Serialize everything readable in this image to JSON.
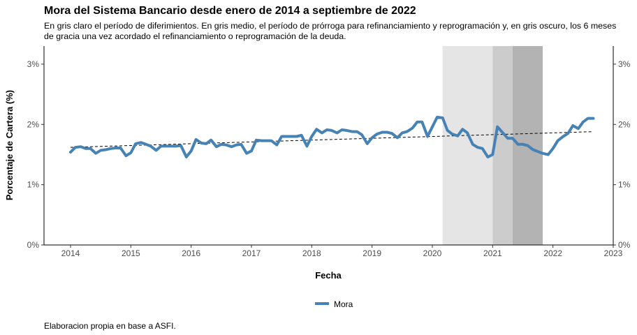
{
  "chart_data": {
    "type": "line",
    "title": "Mora del Sistema Bancario desde enero de 2014 a septiembre de 2022",
    "subtitle": "En gris claro el período de diferimientos. En gris medio, el período de prórroga para refinanciamiento y reprogramación y, en gris oscuro, los 6 meses de gracia una vez acordado el refinanciamiento o reprogramación de la deuda.",
    "caption": "Elaboracion propia en base a ASFI.",
    "xlabel": "Fecha",
    "ylabel": "Porcentaje de Cartera (%)",
    "xlim": [
      2013.56,
      2023.0
    ],
    "ylim": [
      0,
      3.3
    ],
    "x_ticks": [
      "2014",
      "2015",
      "2016",
      "2017",
      "2018",
      "2019",
      "2020",
      "2021",
      "2022",
      "2023"
    ],
    "y_ticks": [
      "0%",
      "1%",
      "2%",
      "3%"
    ],
    "y_tick_values": [
      0,
      1,
      2,
      3
    ],
    "shaded_periods": [
      {
        "start": 2020.17,
        "end": 2021.0,
        "color": "#e5e5e5"
      },
      {
        "start": 2021.0,
        "end": 2021.33,
        "color": "#cccccc"
      },
      {
        "start": 2021.33,
        "end": 2021.83,
        "color": "#b3b3b3"
      }
    ],
    "trend": {
      "x": [
        2014.0,
        2022.67
      ],
      "y": [
        1.62,
        1.88
      ],
      "color": "#000000",
      "style": "dashed"
    },
    "legend": {
      "position": "bottom",
      "entries": [
        "Mora"
      ]
    },
    "series": [
      {
        "name": "Mora",
        "color": "#4682b4",
        "x": [
          2014.0,
          2014.08,
          2014.17,
          2014.25,
          2014.33,
          2014.42,
          2014.5,
          2014.58,
          2014.67,
          2014.75,
          2014.83,
          2014.92,
          2015.0,
          2015.08,
          2015.17,
          2015.25,
          2015.33,
          2015.42,
          2015.5,
          2015.58,
          2015.67,
          2015.75,
          2015.83,
          2015.92,
          2016.0,
          2016.08,
          2016.17,
          2016.25,
          2016.33,
          2016.42,
          2016.5,
          2016.58,
          2016.67,
          2016.75,
          2016.83,
          2016.92,
          2017.0,
          2017.08,
          2017.17,
          2017.25,
          2017.33,
          2017.42,
          2017.5,
          2017.58,
          2017.67,
          2017.75,
          2017.83,
          2017.92,
          2018.0,
          2018.08,
          2018.17,
          2018.25,
          2018.33,
          2018.42,
          2018.5,
          2018.58,
          2018.67,
          2018.75,
          2018.83,
          2018.92,
          2019.0,
          2019.08,
          2019.17,
          2019.25,
          2019.33,
          2019.42,
          2019.5,
          2019.58,
          2019.67,
          2019.75,
          2019.83,
          2019.92,
          2020.0,
          2020.08,
          2020.17,
          2020.25,
          2020.33,
          2020.42,
          2020.5,
          2020.58,
          2020.67,
          2020.75,
          2020.83,
          2020.92,
          2021.0,
          2021.08,
          2021.17,
          2021.25,
          2021.33,
          2021.42,
          2021.5,
          2021.58,
          2021.67,
          2021.75,
          2021.83,
          2021.92,
          2022.0,
          2022.08,
          2022.17,
          2022.25,
          2022.33,
          2022.42,
          2022.5,
          2022.58,
          2022.67
        ],
        "values": [
          1.54,
          1.62,
          1.63,
          1.6,
          1.6,
          1.52,
          1.57,
          1.58,
          1.6,
          1.61,
          1.61,
          1.48,
          1.53,
          1.68,
          1.7,
          1.67,
          1.64,
          1.57,
          1.64,
          1.64,
          1.64,
          1.64,
          1.65,
          1.46,
          1.56,
          1.75,
          1.69,
          1.68,
          1.74,
          1.63,
          1.67,
          1.66,
          1.63,
          1.66,
          1.67,
          1.52,
          1.56,
          1.74,
          1.73,
          1.73,
          1.73,
          1.66,
          1.8,
          1.8,
          1.8,
          1.8,
          1.82,
          1.64,
          1.8,
          1.92,
          1.86,
          1.91,
          1.9,
          1.86,
          1.91,
          1.9,
          1.88,
          1.88,
          1.83,
          1.68,
          1.78,
          1.84,
          1.87,
          1.87,
          1.85,
          1.78,
          1.86,
          1.88,
          1.94,
          2.04,
          2.04,
          1.8,
          1.96,
          2.12,
          2.11,
          1.9,
          1.84,
          1.81,
          1.92,
          1.86,
          1.67,
          1.62,
          1.6,
          1.46,
          1.5,
          1.96,
          1.86,
          1.77,
          1.77,
          1.67,
          1.67,
          1.65,
          1.58,
          1.55,
          1.52,
          1.5,
          1.6,
          1.73,
          1.8,
          1.85,
          1.98,
          1.93,
          2.04,
          2.1,
          2.1
        ]
      }
    ]
  }
}
